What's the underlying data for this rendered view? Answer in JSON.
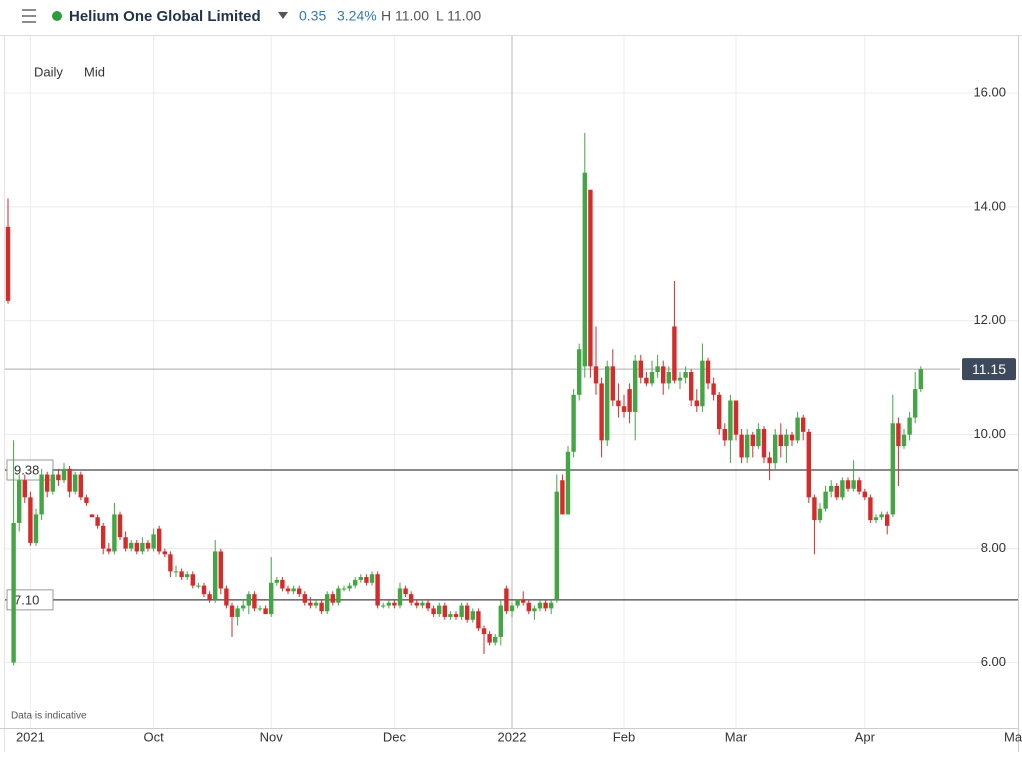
{
  "header": {
    "name": "Helium One Global Limited",
    "change": "0.35",
    "change_pct": "3.24%",
    "high": "H 11.00",
    "low": "L 11.00"
  },
  "chart_data": {
    "type": "candlestick",
    "interval": "Daily",
    "price_type": "Mid",
    "note": "Data is indicative",
    "up_color": "#43a543",
    "down_color": "#d52b2b",
    "ylim": [
      4.85,
      17.0
    ],
    "yticks": [
      {
        "value": 6,
        "label": "6.00"
      },
      {
        "value": 8,
        "label": "8.00"
      },
      {
        "value": 10,
        "label": "10.00"
      },
      {
        "value": 12,
        "label": "12.00"
      },
      {
        "value": 14,
        "label": "14.00"
      },
      {
        "value": 16,
        "label": "16.00"
      }
    ],
    "grid": true,
    "levels": [
      {
        "value": 9.38,
        "label": "9.38"
      },
      {
        "value": 7.1,
        "label": "7.10"
      }
    ],
    "last_price": {
      "value": 11.15,
      "label": "11.15"
    },
    "edge_label": "Ma",
    "categories": [
      null,
      null,
      null,
      null,
      "2021",
      null,
      null,
      null,
      null,
      null,
      null,
      null,
      null,
      null,
      null,
      null,
      null,
      null,
      null,
      null,
      null,
      null,
      null,
      null,
      null,
      null,
      "Oct",
      null,
      null,
      null,
      null,
      null,
      null,
      null,
      null,
      null,
      null,
      null,
      null,
      null,
      null,
      null,
      null,
      null,
      null,
      null,
      null,
      "Nov",
      null,
      null,
      null,
      null,
      null,
      null,
      null,
      null,
      null,
      null,
      null,
      null,
      null,
      null,
      null,
      null,
      null,
      null,
      null,
      null,
      null,
      "Dec",
      null,
      null,
      null,
      null,
      null,
      null,
      null,
      null,
      null,
      null,
      null,
      null,
      null,
      null,
      null,
      null,
      null,
      null,
      null,
      null,
      "2022",
      null,
      null,
      null,
      null,
      null,
      null,
      null,
      null,
      null,
      null,
      null,
      null,
      null,
      null,
      null,
      null,
      null,
      null,
      null,
      "Feb",
      null,
      null,
      null,
      null,
      null,
      null,
      null,
      null,
      null,
      null,
      null,
      null,
      null,
      null,
      null,
      null,
      null,
      null,
      null,
      "Mar",
      null,
      null,
      null,
      null,
      null,
      null,
      null,
      null,
      null,
      null,
      null,
      null,
      null,
      null,
      null,
      null,
      null,
      null,
      null,
      null,
      null,
      null,
      "Apr",
      null,
      null,
      null,
      null,
      null,
      null,
      null,
      null,
      null,
      null
    ],
    "ohlc": [
      [
        13.65,
        14.15,
        12.3,
        12.35
      ],
      [
        6.0,
        9.9,
        5.95,
        8.45
      ],
      [
        8.45,
        9.3,
        8.3,
        9.2
      ],
      [
        9.2,
        9.3,
        8.8,
        8.9
      ],
      [
        8.9,
        9.0,
        8.05,
        8.1
      ],
      [
        8.1,
        8.7,
        8.05,
        8.6
      ],
      [
        8.6,
        9.4,
        8.5,
        9.3
      ],
      [
        9.3,
        9.35,
        8.9,
        9.0
      ],
      [
        9.0,
        9.4,
        8.95,
        9.3
      ],
      [
        9.3,
        9.4,
        9.1,
        9.2
      ],
      [
        9.2,
        9.5,
        9.15,
        9.4
      ],
      [
        9.4,
        9.45,
        8.9,
        9.0
      ],
      [
        9.0,
        9.35,
        8.95,
        9.3
      ],
      [
        9.3,
        9.35,
        8.85,
        8.9
      ],
      [
        8.9,
        8.95,
        8.75,
        8.8
      ],
      [
        8.6,
        8.6,
        8.55,
        8.55
      ],
      [
        8.55,
        8.6,
        8.35,
        8.4
      ],
      [
        8.4,
        8.45,
        7.9,
        8.0
      ],
      [
        8.0,
        8.1,
        7.9,
        7.95
      ],
      [
        7.95,
        8.8,
        7.9,
        8.6
      ],
      [
        8.6,
        8.65,
        8.15,
        8.2
      ],
      [
        8.2,
        8.3,
        7.95,
        8.0
      ],
      [
        8.0,
        8.15,
        7.95,
        8.1
      ],
      [
        8.1,
        8.15,
        7.9,
        7.95
      ],
      [
        7.95,
        8.2,
        7.9,
        8.1
      ],
      [
        8.1,
        8.15,
        7.95,
        8.0
      ],
      [
        8.0,
        8.35,
        7.95,
        8.25
      ],
      [
        8.35,
        8.4,
        7.9,
        7.95
      ],
      [
        7.95,
        8.0,
        7.85,
        7.9
      ],
      [
        7.9,
        7.95,
        7.5,
        7.6
      ],
      [
        7.6,
        7.7,
        7.5,
        7.6
      ],
      [
        7.6,
        7.65,
        7.45,
        7.5
      ],
      [
        7.5,
        7.6,
        7.45,
        7.55
      ],
      [
        7.55,
        7.6,
        7.3,
        7.35
      ],
      [
        7.35,
        7.4,
        7.3,
        7.35
      ],
      [
        7.35,
        7.4,
        7.15,
        7.2
      ],
      [
        7.2,
        7.25,
        7.05,
        7.1
      ],
      [
        7.1,
        8.15,
        7.05,
        7.95
      ],
      [
        7.95,
        8.0,
        7.2,
        7.3
      ],
      [
        7.3,
        7.35,
        6.95,
        7.0
      ],
      [
        7.0,
        7.05,
        6.45,
        6.8
      ],
      [
        6.8,
        7.0,
        6.65,
        6.95
      ],
      [
        6.95,
        7.1,
        6.9,
        7.0
      ],
      [
        7.0,
        7.25,
        6.85,
        7.2
      ],
      [
        7.2,
        7.25,
        6.9,
        6.95
      ],
      [
        6.95,
        7.0,
        6.9,
        6.95
      ],
      [
        6.95,
        7.0,
        6.85,
        6.85
      ],
      [
        6.85,
        7.85,
        6.8,
        7.4
      ],
      [
        7.4,
        7.5,
        7.35,
        7.45
      ],
      [
        7.45,
        7.5,
        7.25,
        7.3
      ],
      [
        7.3,
        7.35,
        7.2,
        7.25
      ],
      [
        7.25,
        7.35,
        7.2,
        7.3
      ],
      [
        7.3,
        7.35,
        7.15,
        7.2
      ],
      [
        7.2,
        7.25,
        7.0,
        7.05
      ],
      [
        7.05,
        7.15,
        6.95,
        7.0
      ],
      [
        7.0,
        7.1,
        6.95,
        7.05
      ],
      [
        7.05,
        7.1,
        6.85,
        6.9
      ],
      [
        6.9,
        7.25,
        6.85,
        7.2
      ],
      [
        7.2,
        7.25,
        7.0,
        7.05
      ],
      [
        7.05,
        7.35,
        7.0,
        7.3
      ],
      [
        7.3,
        7.35,
        7.25,
        7.3
      ],
      [
        7.3,
        7.4,
        7.25,
        7.35
      ],
      [
        7.35,
        7.5,
        7.3,
        7.45
      ],
      [
        7.45,
        7.55,
        7.4,
        7.5
      ],
      [
        7.5,
        7.55,
        7.35,
        7.4
      ],
      [
        7.4,
        7.6,
        7.35,
        7.55
      ],
      [
        7.55,
        7.6,
        6.95,
        7.0
      ],
      [
        7.0,
        7.05,
        6.95,
        7.0
      ],
      [
        7.0,
        7.1,
        6.95,
        7.05
      ],
      [
        7.05,
        7.1,
        6.95,
        7.0
      ],
      [
        7.0,
        7.4,
        6.95,
        7.3
      ],
      [
        7.3,
        7.35,
        7.15,
        7.2
      ],
      [
        7.2,
        7.25,
        7.0,
        7.05
      ],
      [
        7.05,
        7.1,
        6.95,
        7.0
      ],
      [
        7.0,
        7.1,
        6.95,
        7.05
      ],
      [
        7.05,
        7.1,
        6.9,
        6.95
      ],
      [
        6.95,
        7.0,
        6.8,
        6.85
      ],
      [
        6.85,
        7.05,
        6.8,
        7.0
      ],
      [
        7.0,
        7.05,
        6.75,
        6.8
      ],
      [
        6.8,
        6.9,
        6.75,
        6.85
      ],
      [
        6.85,
        6.9,
        6.75,
        6.8
      ],
      [
        6.8,
        7.05,
        6.75,
        7.0
      ],
      [
        7.0,
        7.05,
        6.7,
        6.75
      ],
      [
        6.75,
        6.95,
        6.7,
        6.9
      ],
      [
        6.9,
        6.95,
        6.55,
        6.6
      ],
      [
        6.6,
        6.65,
        6.15,
        6.5
      ],
      [
        6.5,
        6.55,
        6.3,
        6.35
      ],
      [
        6.35,
        6.5,
        6.3,
        6.45
      ],
      [
        6.45,
        7.1,
        6.3,
        7.0
      ],
      [
        7.3,
        7.35,
        6.85,
        6.9
      ],
      [
        6.9,
        7.05,
        6.8,
        7.0
      ],
      [
        7.0,
        7.1,
        6.95,
        7.1
      ],
      [
        7.1,
        7.25,
        7.0,
        7.05
      ],
      [
        7.05,
        7.1,
        6.85,
        6.9
      ],
      [
        6.9,
        7.0,
        6.75,
        6.95
      ],
      [
        6.95,
        7.1,
        6.9,
        7.05
      ],
      [
        7.05,
        7.1,
        6.9,
        6.95
      ],
      [
        6.95,
        7.1,
        6.85,
        7.05
      ],
      [
        7.1,
        9.3,
        7.05,
        9.0
      ],
      [
        9.2,
        9.3,
        8.6,
        8.6
      ],
      [
        8.6,
        9.8,
        8.6,
        9.7
      ],
      [
        9.7,
        10.8,
        9.6,
        10.7
      ],
      [
        10.7,
        11.6,
        10.6,
        11.5
      ],
      [
        11.2,
        15.3,
        11.0,
        14.6
      ],
      [
        14.3,
        14.3,
        11.0,
        11.2
      ],
      [
        11.2,
        11.9,
        10.7,
        10.9
      ],
      [
        10.9,
        11.0,
        9.6,
        9.9
      ],
      [
        9.9,
        11.3,
        9.8,
        11.2
      ],
      [
        11.2,
        11.5,
        10.5,
        10.6
      ],
      [
        10.6,
        10.9,
        10.3,
        10.5
      ],
      [
        10.5,
        10.7,
        10.3,
        10.4
      ],
      [
        10.8,
        10.9,
        10.2,
        10.4
      ],
      [
        10.4,
        11.4,
        9.9,
        11.3
      ],
      [
        11.3,
        11.4,
        10.9,
        11.0
      ],
      [
        11.0,
        11.1,
        10.85,
        10.9
      ],
      [
        10.9,
        11.3,
        10.85,
        11.1
      ],
      [
        11.1,
        11.4,
        11.0,
        11.2
      ],
      [
        11.2,
        11.3,
        10.7,
        10.9
      ],
      [
        10.9,
        11.2,
        10.8,
        11.1
      ],
      [
        11.9,
        12.7,
        10.9,
        10.95
      ],
      [
        10.95,
        11.1,
        10.8,
        11.0
      ],
      [
        11.0,
        11.2,
        10.9,
        11.1
      ],
      [
        11.1,
        11.15,
        10.5,
        10.6
      ],
      [
        10.6,
        10.8,
        10.4,
        10.5
      ],
      [
        10.5,
        11.6,
        10.4,
        11.3
      ],
      [
        11.3,
        11.35,
        10.8,
        10.9
      ],
      [
        10.9,
        11.0,
        10.6,
        10.7
      ],
      [
        10.7,
        10.75,
        10.0,
        10.1
      ],
      [
        10.1,
        10.2,
        9.8,
        9.9
      ],
      [
        9.9,
        10.7,
        9.5,
        10.6
      ],
      [
        10.6,
        10.6,
        9.9,
        10.0
      ],
      [
        10.0,
        10.1,
        9.5,
        9.6
      ],
      [
        9.6,
        10.1,
        9.5,
        10.0
      ],
      [
        10.0,
        10.05,
        9.6,
        9.8
      ],
      [
        9.8,
        10.2,
        9.75,
        10.1
      ],
      [
        10.1,
        10.15,
        9.5,
        9.6
      ],
      [
        9.6,
        9.7,
        9.2,
        9.5
      ],
      [
        9.5,
        10.1,
        9.4,
        10.0
      ],
      [
        10.0,
        10.2,
        9.6,
        9.8
      ],
      [
        9.8,
        10.1,
        9.5,
        10.0
      ],
      [
        10.0,
        10.05,
        9.8,
        9.9
      ],
      [
        9.9,
        10.4,
        9.85,
        10.3
      ],
      [
        10.3,
        10.35,
        9.9,
        10.05
      ],
      [
        10.05,
        10.1,
        8.8,
        8.9
      ],
      [
        8.9,
        8.95,
        7.9,
        8.5
      ],
      [
        8.5,
        8.8,
        8.45,
        8.7
      ],
      [
        8.7,
        9.1,
        8.65,
        9.0
      ],
      [
        9.0,
        9.2,
        8.9,
        9.1
      ],
      [
        9.1,
        9.15,
        8.85,
        8.9
      ],
      [
        8.9,
        9.25,
        8.85,
        9.2
      ],
      [
        9.2,
        9.25,
        9.0,
        9.05
      ],
      [
        9.05,
        9.55,
        9.0,
        9.2
      ],
      [
        9.2,
        9.25,
        8.95,
        9.0
      ],
      [
        9.0,
        9.05,
        8.85,
        8.9
      ],
      [
        8.9,
        8.95,
        8.45,
        8.5
      ],
      [
        8.5,
        8.6,
        8.45,
        8.55
      ],
      [
        8.55,
        8.65,
        8.5,
        8.6
      ],
      [
        8.6,
        8.65,
        8.25,
        8.4
      ],
      [
        8.6,
        10.7,
        8.55,
        10.2
      ],
      [
        10.2,
        10.3,
        9.1,
        9.8
      ],
      [
        9.8,
        10.1,
        9.75,
        10.0
      ],
      [
        10.0,
        10.4,
        9.9,
        10.3
      ],
      [
        10.3,
        11.1,
        10.2,
        10.8
      ],
      [
        10.8,
        11.2,
        10.75,
        11.15
      ]
    ]
  }
}
